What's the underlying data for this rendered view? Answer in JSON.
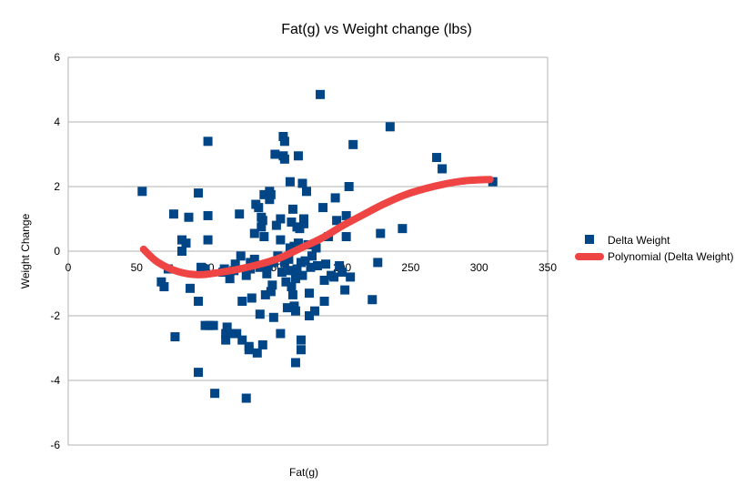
{
  "chart_data": {
    "type": "scatter",
    "title": "Fat(g) vs Weight change (lbs)",
    "xlabel": "Fat(g)",
    "ylabel": "Weight Change",
    "xlim": [
      0,
      350
    ],
    "ylim": [
      -6,
      6
    ],
    "x_ticks": [
      "0",
      "50",
      "100",
      "150",
      "200",
      "250",
      "300",
      "350"
    ],
    "y_ticks": [
      "6",
      "4",
      "2",
      "0",
      "-2",
      "-4",
      "-6"
    ],
    "grid": "horizontal",
    "legend_position": "right",
    "colors": {
      "points": "#004586",
      "trend": "#ee4444",
      "grid": "#b3b3b3"
    },
    "series": [
      {
        "name": "Delta Weight",
        "marker": "square",
        "points": [
          [
            54,
            1.85
          ],
          [
            68,
            -0.95
          ],
          [
            70,
            -1.1
          ],
          [
            73,
            -0.55
          ],
          [
            77,
            1.15
          ],
          [
            78,
            -2.65
          ],
          [
            83,
            0.35
          ],
          [
            83,
            0
          ],
          [
            86,
            0.25
          ],
          [
            88,
            1.05
          ],
          [
            89,
            -1.15
          ],
          [
            95,
            1.8
          ],
          [
            95,
            -1.55
          ],
          [
            95,
            -3.75
          ],
          [
            97,
            -0.5
          ],
          [
            100,
            -2.3
          ],
          [
            100,
            -0.55
          ],
          [
            102,
            3.4
          ],
          [
            102,
            1.1
          ],
          [
            102,
            0.35
          ],
          [
            103,
            -2.3
          ],
          [
            106,
            -2.3
          ],
          [
            107,
            -4.4
          ],
          [
            113,
            -0.65
          ],
          [
            114,
            -0.55
          ],
          [
            115,
            -2.75
          ],
          [
            115,
            -2.55
          ],
          [
            116,
            -2.35
          ],
          [
            118,
            -0.85
          ],
          [
            120,
            -2.55
          ],
          [
            121,
            -0.6
          ],
          [
            122,
            -0.4
          ],
          [
            123,
            -2.55
          ],
          [
            125,
            1.15
          ],
          [
            126,
            -0.15
          ],
          [
            127,
            -1.55
          ],
          [
            127,
            -2.75
          ],
          [
            130,
            -4.55
          ],
          [
            130,
            -0.75
          ],
          [
            132,
            -2.95
          ],
          [
            132,
            -3.05
          ],
          [
            133,
            -0.55
          ],
          [
            133,
            -0.35
          ],
          [
            134,
            -1.45
          ],
          [
            136,
            0.55
          ],
          [
            136,
            -0.25
          ],
          [
            137,
            1.45
          ],
          [
            138,
            -3.15
          ],
          [
            139,
            1.35
          ],
          [
            140,
            -1.95
          ],
          [
            140,
            -0.5
          ],
          [
            141,
            1.05
          ],
          [
            141,
            0.75
          ],
          [
            142,
            -2.9
          ],
          [
            142,
            0.95
          ],
          [
            143,
            1.75
          ],
          [
            143,
            0.45
          ],
          [
            144,
            -1.35
          ],
          [
            145,
            -0.7
          ],
          [
            146,
            -0.45
          ],
          [
            147,
            1.85
          ],
          [
            147,
            1.6
          ],
          [
            148,
            -1.25
          ],
          [
            148,
            1.75
          ],
          [
            149,
            -1.05
          ],
          [
            150,
            -0.35
          ],
          [
            150,
            -2.05
          ],
          [
            151,
            3.0
          ],
          [
            152,
            0.8
          ],
          [
            153,
            -0.15
          ],
          [
            155,
            -2.55
          ],
          [
            155,
            1.0
          ],
          [
            155,
            0.35
          ],
          [
            156,
            -0.65
          ],
          [
            157,
            3.55
          ],
          [
            157,
            2.95
          ],
          [
            158,
            3.4
          ],
          [
            158,
            2.85
          ],
          [
            158,
            -0.35
          ],
          [
            159,
            -0.95
          ],
          [
            160,
            -1.75
          ],
          [
            160,
            -0.6
          ],
          [
            161,
            -0.25
          ],
          [
            162,
            2.15
          ],
          [
            162,
            0.1
          ],
          [
            163,
            0.9
          ],
          [
            163,
            -1.1
          ],
          [
            164,
            -1.35
          ],
          [
            164,
            1.3
          ],
          [
            165,
            0.15
          ],
          [
            165,
            -0.6
          ],
          [
            165,
            -1.7
          ],
          [
            166,
            -0.85
          ],
          [
            166,
            -1.85
          ],
          [
            166,
            -3.45
          ],
          [
            167,
            -0.55
          ],
          [
            167,
            0.75
          ],
          [
            168,
            0.25
          ],
          [
            168,
            2.95
          ],
          [
            169,
            0.7
          ],
          [
            170,
            -0.35
          ],
          [
            170,
            -2.75
          ],
          [
            170,
            -3.05
          ],
          [
            171,
            -0.75
          ],
          [
            171,
            2.1
          ],
          [
            172,
            1.0
          ],
          [
            172,
            0.85
          ],
          [
            173,
            -0.3
          ],
          [
            174,
            1.85
          ],
          [
            175,
            0.2
          ],
          [
            176,
            -1.3
          ],
          [
            176,
            -2.0
          ],
          [
            177,
            -0.5
          ],
          [
            178,
            -0.15
          ],
          [
            180,
            -1.85
          ],
          [
            181,
            0.1
          ],
          [
            182,
            -0.45
          ],
          [
            184,
            4.85
          ],
          [
            186,
            1.35
          ],
          [
            187,
            -0.9
          ],
          [
            187,
            -1.55
          ],
          [
            188,
            -0.4
          ],
          [
            190,
            0.45
          ],
          [
            192,
            -0.75
          ],
          [
            194,
            -0.8
          ],
          [
            195,
            1.65
          ],
          [
            196,
            0.95
          ],
          [
            198,
            -0.45
          ],
          [
            200,
            -0.65
          ],
          [
            202,
            -1.2
          ],
          [
            203,
            1.1
          ],
          [
            203,
            0.45
          ],
          [
            205,
            2.0
          ],
          [
            206,
            -0.8
          ],
          [
            208,
            3.3
          ],
          [
            222,
            -1.5
          ],
          [
            226,
            -0.35
          ],
          [
            228,
            0.55
          ],
          [
            235,
            3.85
          ],
          [
            244,
            0.7
          ],
          [
            269,
            2.9
          ],
          [
            273,
            2.55
          ],
          [
            310,
            2.15
          ]
        ]
      },
      {
        "name": "Polynomial (Delta Weight)",
        "type": "line",
        "curve": [
          [
            55,
            0.06
          ],
          [
            65,
            -0.33
          ],
          [
            80,
            -0.63
          ],
          [
            95,
            -0.73
          ],
          [
            110,
            -0.66
          ],
          [
            125,
            -0.55
          ],
          [
            140,
            -0.4
          ],
          [
            155,
            -0.2
          ],
          [
            170,
            0.1
          ],
          [
            185,
            0.4
          ],
          [
            200,
            0.78
          ],
          [
            215,
            1.12
          ],
          [
            230,
            1.45
          ],
          [
            245,
            1.73
          ],
          [
            260,
            1.93
          ],
          [
            275,
            2.08
          ],
          [
            290,
            2.18
          ],
          [
            308,
            2.22
          ]
        ]
      }
    ]
  }
}
